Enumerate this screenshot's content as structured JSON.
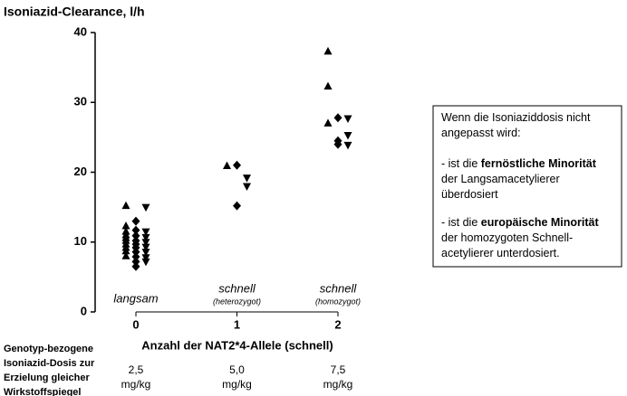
{
  "chart_data": {
    "type": "scatter",
    "title": "Isoniazid-Clearance, l/h",
    "xlabel": "Anzahl der NAT2*4-Allele (schnell)",
    "xlim": [
      0,
      2
    ],
    "xticks": [
      0,
      1,
      2
    ],
    "ylim": [
      0,
      40
    ],
    "yticks": [
      0,
      10,
      20,
      30,
      40
    ],
    "series": [
      {
        "marker": "triangle-up",
        "color": "#000000",
        "x": [
          0,
          0,
          0,
          0,
          0,
          0,
          0,
          0,
          0,
          0,
          1,
          2,
          2,
          2
        ],
        "values": [
          15.2,
          12.3,
          11.5,
          11.0,
          10.6,
          10.2,
          9.7,
          9.2,
          8.7,
          8.0,
          20.9,
          37.3,
          32.3,
          27.0
        ]
      },
      {
        "marker": "diamond",
        "color": "#000000",
        "x": [
          0,
          0,
          0,
          0,
          0,
          0,
          0,
          0,
          0,
          0,
          1,
          1,
          2,
          2,
          2
        ],
        "values": [
          13.0,
          11.7,
          10.9,
          10.2,
          9.7,
          9.2,
          8.6,
          7.9,
          7.2,
          6.5,
          21.0,
          15.2,
          27.8,
          24.5,
          24.0
        ]
      },
      {
        "marker": "triangle-down",
        "color": "#000000",
        "x": [
          0,
          0,
          0,
          0,
          0,
          0,
          0,
          0,
          1,
          1,
          2,
          2,
          2
        ],
        "values": [
          15.0,
          11.5,
          10.7,
          10.0,
          9.3,
          8.6,
          7.8,
          7.2,
          19.2,
          18.0,
          27.7,
          25.3,
          23.9
        ]
      }
    ],
    "genotypes": [
      {
        "label": "langsam"
      },
      {
        "label": "schnell",
        "note": "(heterozygot)"
      },
      {
        "label": "schnell",
        "note": "(homozygot)"
      }
    ],
    "dose_label": [
      "Genotyp-bezogene",
      "Isoniazid-Dosis zur",
      "Erzielung gleicher",
      "Wirkstoffspiegel"
    ],
    "doses": [
      {
        "amount": "2,5",
        "unit": "mg/kg"
      },
      {
        "amount": "5,0",
        "unit": "mg/kg"
      },
      {
        "amount": "7,5",
        "unit": "mg/kg"
      }
    ]
  },
  "note_box": {
    "lines": [
      [
        {
          "text": "Wenn die Isoniaziddosis nicht"
        }
      ],
      [
        {
          "text": "angepasst wird:"
        }
      ],
      [
        {
          "text": "- ist die "
        },
        {
          "text": "fernöstliche Minorität",
          "bold": true
        }
      ],
      [
        {
          "text": "der Langsamacetylierer"
        }
      ],
      [
        {
          "text": "überdosiert"
        }
      ],
      [
        {
          "text": "- ist die "
        },
        {
          "text": "europäische Minorität",
          "bold": true
        }
      ],
      [
        {
          "text": "der homozygoten Schnell-"
        }
      ],
      [
        {
          "text": "acetylierer unterdosiert."
        }
      ]
    ]
  }
}
